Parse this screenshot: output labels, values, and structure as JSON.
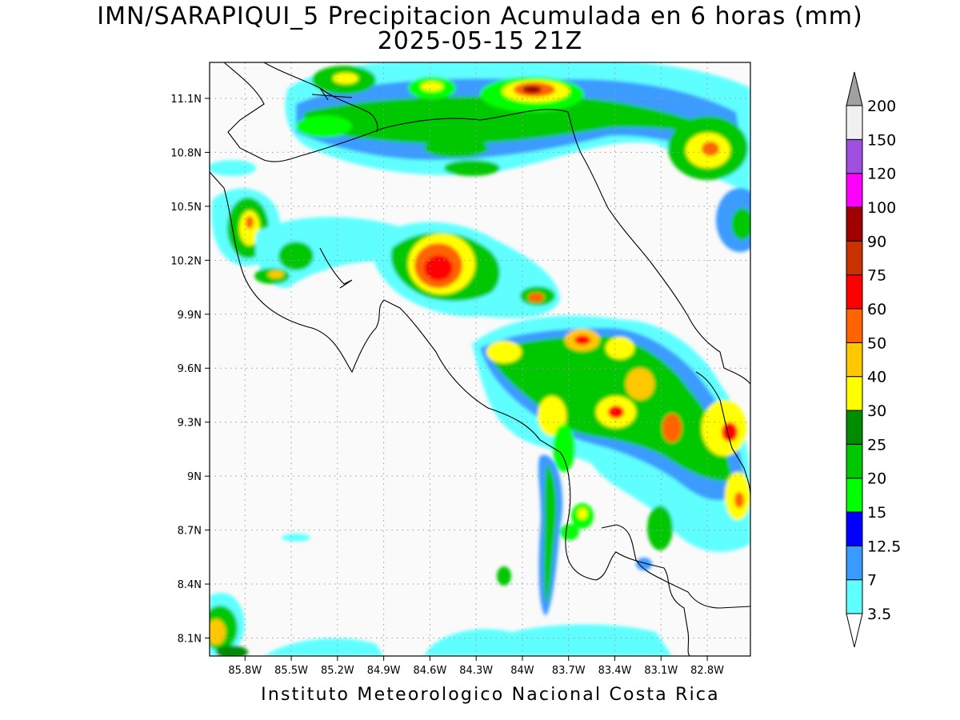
{
  "header": {
    "title": "IMN/SARAPIQUI_5 Precipitacion Acumulada en 6 horas (mm)",
    "subtitle": "2025-05-15 21Z"
  },
  "footer": {
    "credit": "Instituto Meteorologico Nacional Costa Rica"
  },
  "map": {
    "lon_range": [
      -86.03,
      -82.52
    ],
    "lat_range": [
      8.0,
      11.3
    ],
    "lon_ticks": [
      {
        "value": -85.8,
        "label": "85.8W"
      },
      {
        "value": -85.5,
        "label": "85.5W"
      },
      {
        "value": -85.2,
        "label": "85.2W"
      },
      {
        "value": -84.9,
        "label": "84.9W"
      },
      {
        "value": -84.6,
        "label": "84.6W"
      },
      {
        "value": -84.3,
        "label": "84.3W"
      },
      {
        "value": -84.0,
        "label": "84W"
      },
      {
        "value": -83.7,
        "label": "83.7W"
      },
      {
        "value": -83.4,
        "label": "83.4W"
      },
      {
        "value": -83.1,
        "label": "83.1W"
      },
      {
        "value": -82.8,
        "label": "82.8W"
      }
    ],
    "lat_ticks": [
      {
        "value": 11.1,
        "label": "11.1N"
      },
      {
        "value": 10.8,
        "label": "10.8N"
      },
      {
        "value": 10.5,
        "label": "10.5N"
      },
      {
        "value": 10.2,
        "label": "10.2N"
      },
      {
        "value": 9.9,
        "label": "9.9N"
      },
      {
        "value": 9.6,
        "label": "9.6N"
      },
      {
        "value": 9.3,
        "label": "9.3N"
      },
      {
        "value": 9.0,
        "label": "9N"
      },
      {
        "value": 8.7,
        "label": "8.7N"
      },
      {
        "value": 8.4,
        "label": "8.4N"
      },
      {
        "value": 8.1,
        "label": "8.1N"
      }
    ],
    "grid": "dotted",
    "colorbar": {
      "levels": [
        "3.5",
        "7",
        "12.5",
        "15",
        "20",
        "25",
        "30",
        "40",
        "50",
        "60",
        "75",
        "90",
        "100",
        "120",
        "150",
        "200"
      ],
      "colors": [
        "#60ffff",
        "#3a9bff",
        "#0000ff",
        "#00ff00",
        "#00c800",
        "#008c00",
        "#ffff00",
        "#ffc800",
        "#ff6400",
        "#ff0000",
        "#c83200",
        "#a00000",
        "#ff00ff",
        "#a050e0",
        "#f0f0f0"
      ],
      "under_color": "#ffffff",
      "over_color": "#a0a0a0"
    },
    "field_color": "#fafafa"
  }
}
